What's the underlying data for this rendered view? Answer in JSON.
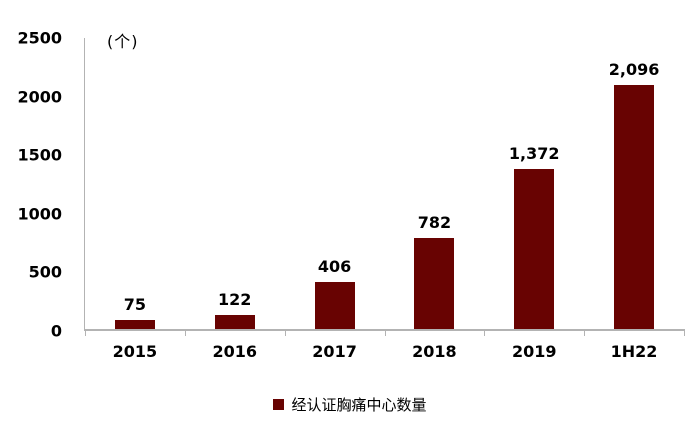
{
  "chart_data": {
    "type": "bar",
    "title": "",
    "unit_label": "(个)",
    "categories": [
      "2015",
      "2016",
      "2017",
      "2018",
      "2019",
      "1H22"
    ],
    "values": [
      75,
      122,
      406,
      782,
      1372,
      2096
    ],
    "value_labels": [
      "75",
      "122",
      "406",
      "782",
      "1,372",
      "2,096"
    ],
    "ylim": [
      0,
      2500
    ],
    "yticks": [
      0,
      500,
      1000,
      1500,
      2000,
      2500
    ],
    "grid": false,
    "legend_position": "bottom",
    "legend": [
      {
        "label": "经认证胸痛中心数量",
        "color": "#680302"
      }
    ],
    "bar_color": "#680302",
    "axis_color": "#b3b3b3",
    "text_color": "#000000"
  }
}
